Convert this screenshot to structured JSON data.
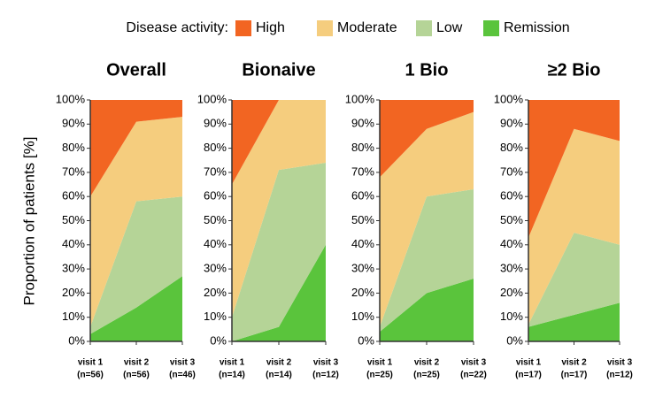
{
  "chart_data": [
    {
      "type": "area",
      "title": "Overall",
      "categories": [
        "visit 1",
        "visit 2",
        "visit 3"
      ],
      "n_labels": [
        "(n=56)",
        "(n=56)",
        "(n=46)"
      ],
      "ylim": [
        0,
        100
      ],
      "yticks": [
        {
          "value": 0,
          "label": "0%"
        },
        {
          "value": 10,
          "label": "10%"
        },
        {
          "value": 20,
          "label": "20%"
        },
        {
          "value": 30,
          "label": "30%"
        },
        {
          "value": 40,
          "label": "40%"
        },
        {
          "value": 50,
          "label": "50%"
        },
        {
          "value": 60,
          "label": "60%"
        },
        {
          "value": 70,
          "label": "70%"
        },
        {
          "value": 80,
          "label": "80%"
        },
        {
          "value": 90,
          "label": "90%"
        },
        {
          "value": 100,
          "label": "100%"
        }
      ],
      "series": [
        {
          "values": [
            40,
            9,
            7
          ]
        },
        {
          "values": [
            54,
            33,
            33
          ]
        },
        {
          "values": [
            3,
            44,
            33
          ]
        },
        {
          "values": [
            3,
            14,
            27
          ]
        }
      ]
    },
    {
      "type": "area",
      "title": "Bionaive",
      "categories": [
        "visit 1",
        "visit 2",
        "visit 3"
      ],
      "n_labels": [
        "(n=14)",
        "(n=14)",
        "(n=12)"
      ],
      "ylim": [
        0,
        100
      ],
      "yticks": [
        {
          "value": 0,
          "label": "0%"
        },
        {
          "value": 10,
          "label": "10%"
        },
        {
          "value": 20,
          "label": "20%"
        },
        {
          "value": 30,
          "label": "30%"
        },
        {
          "value": 40,
          "label": "40%"
        },
        {
          "value": 50,
          "label": "50%"
        },
        {
          "value": 60,
          "label": "60%"
        },
        {
          "value": 70,
          "label": "70%"
        },
        {
          "value": 80,
          "label": "80%"
        },
        {
          "value": 90,
          "label": "90%"
        },
        {
          "value": 100,
          "label": "100%"
        }
      ],
      "series": [
        {
          "values": [
            35,
            0,
            0
          ]
        },
        {
          "values": [
            55,
            29,
            26
          ]
        },
        {
          "values": [
            10,
            65,
            34
          ]
        },
        {
          "values": [
            0,
            6,
            40
          ]
        }
      ]
    },
    {
      "type": "area",
      "title": "1 Bio",
      "categories": [
        "visit 1",
        "visit 2",
        "visit 3"
      ],
      "n_labels": [
        "(n=25)",
        "(n=25)",
        "(n=22)"
      ],
      "ylim": [
        0,
        100
      ],
      "yticks": [
        {
          "value": 0,
          "label": "0%"
        },
        {
          "value": 10,
          "label": "10%"
        },
        {
          "value": 20,
          "label": "20%"
        },
        {
          "value": 30,
          "label": "30%"
        },
        {
          "value": 40,
          "label": "40%"
        },
        {
          "value": 50,
          "label": "50%"
        },
        {
          "value": 60,
          "label": "60%"
        },
        {
          "value": 70,
          "label": "70%"
        },
        {
          "value": 80,
          "label": "80%"
        },
        {
          "value": 90,
          "label": "90%"
        },
        {
          "value": 100,
          "label": "100%"
        }
      ],
      "series": [
        {
          "values": [
            32,
            12,
            5
          ]
        },
        {
          "values": [
            62,
            28,
            32
          ]
        },
        {
          "values": [
            2,
            40,
            37
          ]
        },
        {
          "values": [
            4,
            20,
            26
          ]
        }
      ]
    },
    {
      "type": "area",
      "title": "≥2 Bio",
      "categories": [
        "visit 1",
        "visit 2",
        "visit 3"
      ],
      "n_labels": [
        "(n=17)",
        "(n=17)",
        "(n=12)"
      ],
      "ylim": [
        0,
        100
      ],
      "yticks": [
        {
          "value": 0,
          "label": "0%"
        },
        {
          "value": 10,
          "label": "10%"
        },
        {
          "value": 20,
          "label": "20%"
        },
        {
          "value": 30,
          "label": "30%"
        },
        {
          "value": 40,
          "label": "40%"
        },
        {
          "value": 50,
          "label": "50%"
        },
        {
          "value": 60,
          "label": "60%"
        },
        {
          "value": 70,
          "label": "70%"
        },
        {
          "value": 80,
          "label": "80%"
        },
        {
          "value": 90,
          "label": "90%"
        },
        {
          "value": 100,
          "label": "100%"
        }
      ],
      "series": [
        {
          "values": [
            57,
            12,
            17
          ]
        },
        {
          "values": [
            36,
            43,
            43
          ]
        },
        {
          "values": [
            1,
            34,
            24
          ]
        },
        {
          "values": [
            6,
            11,
            16
          ]
        }
      ]
    }
  ],
  "legend": {
    "title": "Disease activity:",
    "entries": [
      {
        "name": "High",
        "color": "#f26522"
      },
      {
        "name": "Moderate",
        "color": "#f5cd7e"
      },
      {
        "name": "Low",
        "color": "#b5d497"
      },
      {
        "name": "Remission",
        "color": "#5ac43c"
      }
    ]
  },
  "y_label": "Proportion of patients [%]"
}
